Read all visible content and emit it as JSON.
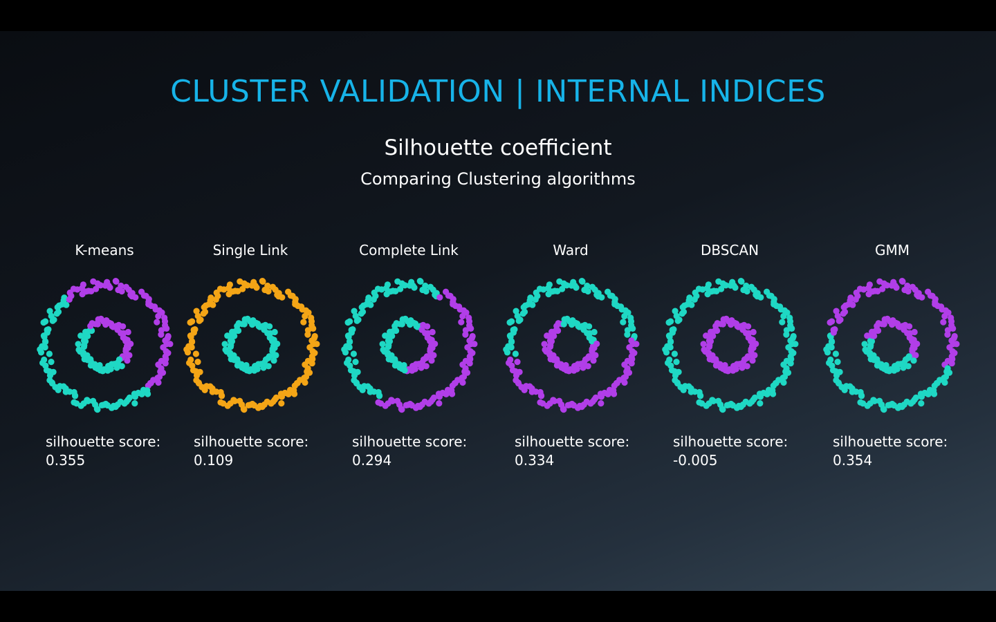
{
  "slide": {
    "title": "CLUSTER VALIDATION | INTERNAL INDICES",
    "subtitle": "Silhouette coefficient",
    "subsubtitle": "Comparing Clustering algorithms"
  },
  "colors": {
    "title": "#17b3e8",
    "teal": "#1fd8c4",
    "purple": "#b13ee8",
    "orange": "#f4a516"
  },
  "panels": [
    {
      "label": "K-means",
      "score_caption": "silhouette score:",
      "score_value": "0.355",
      "coloring": "kmeans",
      "description_colors": [
        "teal",
        "purple"
      ]
    },
    {
      "label": "Single Link",
      "score_caption": "silhouette score:",
      "score_value": "0.109",
      "coloring": "single",
      "description_colors": [
        "orange",
        "teal"
      ]
    },
    {
      "label": "Complete Link",
      "score_caption": "silhouette score:",
      "score_value": "0.294",
      "coloring": "complete",
      "description_colors": [
        "teal",
        "purple"
      ]
    },
    {
      "label": "Ward",
      "score_caption": "silhouette score:",
      "score_value": "0.334",
      "coloring": "ward",
      "description_colors": [
        "teal",
        "purple"
      ]
    },
    {
      "label": "DBSCAN",
      "score_caption": "silhouette score:",
      "score_value": "-0.005",
      "coloring": "dbscan",
      "description_colors": [
        "teal",
        "purple"
      ]
    },
    {
      "label": "GMM",
      "score_caption": "silhouette score:",
      "score_value": "0.354",
      "coloring": "gmm",
      "description_colors": [
        "purple",
        "teal"
      ]
    }
  ]
}
